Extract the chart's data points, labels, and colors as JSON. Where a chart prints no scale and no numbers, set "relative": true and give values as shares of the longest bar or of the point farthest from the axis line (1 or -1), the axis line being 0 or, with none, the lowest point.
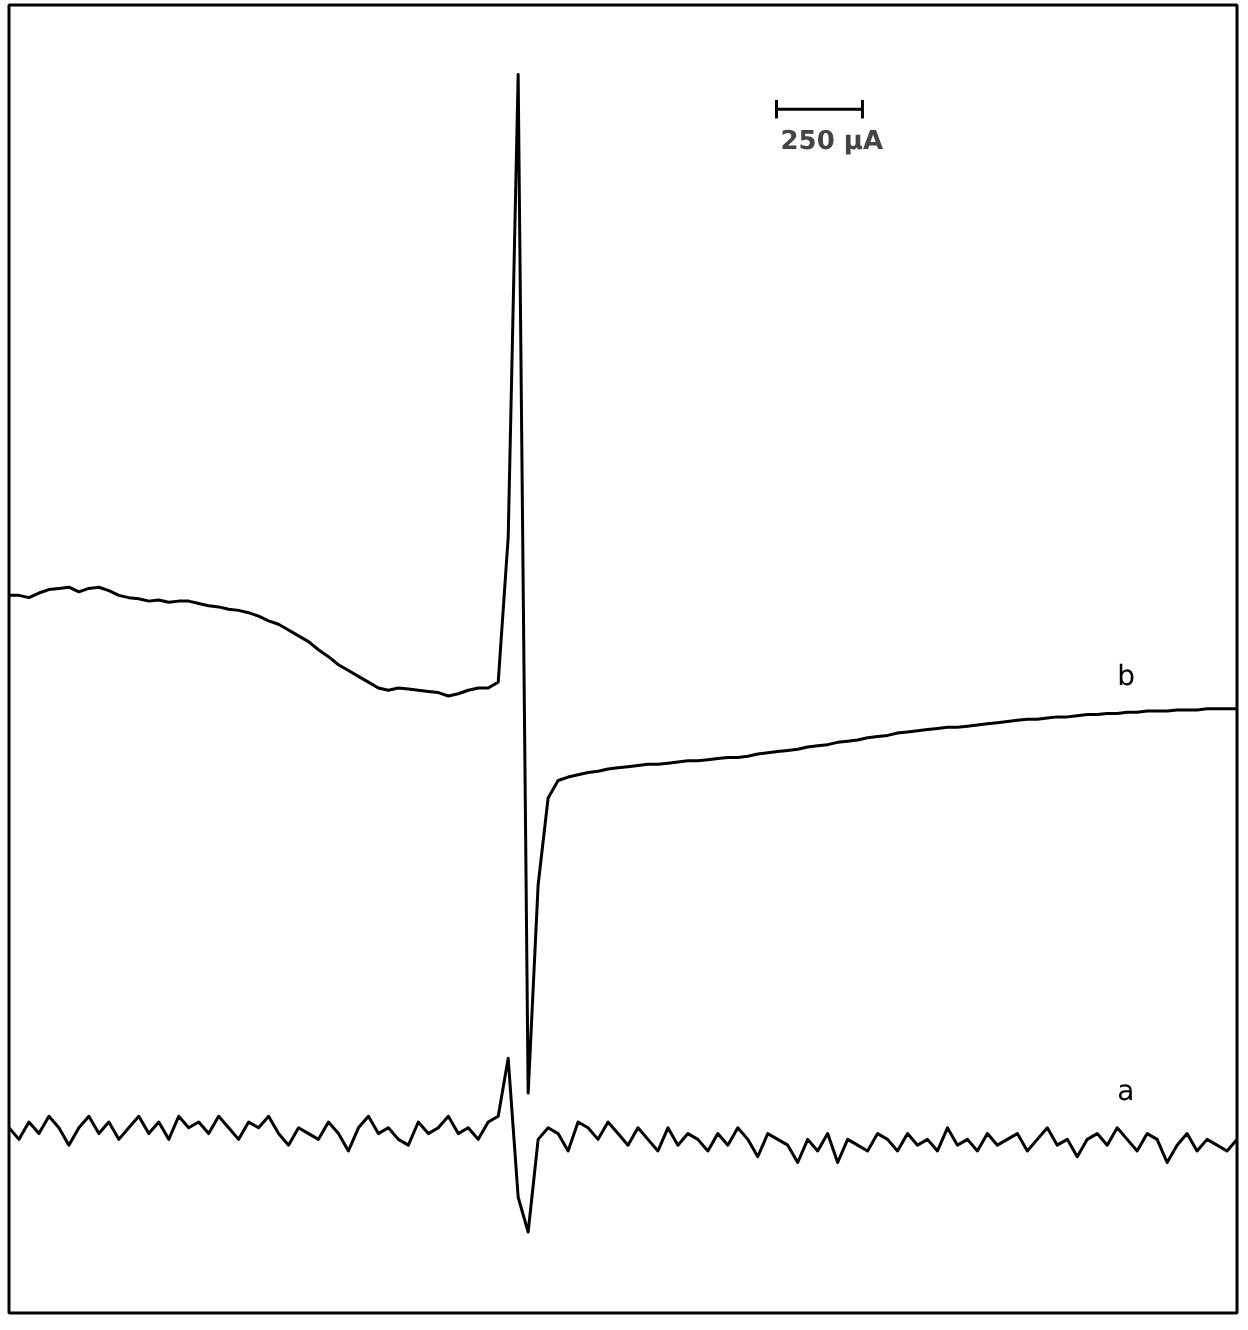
{
  "chart_data": {
    "type": "line",
    "relative": true,
    "categories": [
      null,
      null,
      null,
      null,
      null,
      null,
      null,
      null,
      null,
      null,
      null,
      null,
      null,
      null,
      null,
      null,
      null,
      null,
      null,
      null,
      null,
      null,
      null,
      null,
      null,
      null,
      null,
      null,
      null,
      null,
      null,
      null,
      null,
      null,
      null,
      null,
      null,
      null,
      null,
      null,
      null,
      null,
      null,
      null,
      null,
      null,
      null,
      null,
      null,
      null,
      null,
      null,
      null,
      null,
      null,
      null,
      null,
      null,
      null,
      null,
      null,
      null,
      null,
      null,
      null,
      null,
      null,
      null,
      null,
      null,
      null,
      null,
      null,
      null,
      null,
      null,
      null,
      null,
      null,
      null,
      null,
      null,
      null,
      null,
      null,
      null,
      null,
      null,
      null,
      null,
      null,
      null,
      null,
      null,
      null,
      null,
      null,
      null,
      null,
      null,
      null,
      null,
      null,
      null,
      null,
      null,
      null,
      null,
      null,
      null,
      null,
      null,
      null,
      null,
      null,
      null,
      null,
      null,
      null,
      null,
      null,
      null,
      null,
      null
    ],
    "series": [
      {
        "name": "b",
        "color": "#000000",
        "values": [
          0.55,
          0.55,
          0.548,
          0.552,
          0.555,
          0.556,
          0.557,
          0.553,
          0.556,
          0.557,
          0.554,
          0.55,
          0.548,
          0.547,
          0.545,
          0.546,
          0.544,
          0.545,
          0.545,
          0.543,
          0.541,
          0.54,
          0.538,
          0.537,
          0.535,
          0.532,
          0.528,
          0.525,
          0.52,
          0.515,
          0.51,
          0.503,
          0.497,
          0.49,
          0.485,
          0.48,
          0.475,
          0.47,
          0.468,
          0.47,
          0.469,
          0.468,
          0.467,
          0.466,
          0.463,
          0.465,
          0.468,
          0.47,
          0.47,
          0.475,
          0.6,
          1.0,
          0.12,
          0.3,
          0.375,
          0.39,
          0.393,
          0.395,
          0.397,
          0.398,
          0.4,
          0.401,
          0.402,
          0.403,
          0.404,
          0.404,
          0.405,
          0.406,
          0.407,
          0.407,
          0.408,
          0.409,
          0.41,
          0.41,
          0.411,
          0.413,
          0.414,
          0.415,
          0.416,
          0.417,
          0.419,
          0.42,
          0.421,
          0.423,
          0.424,
          0.425,
          0.427,
          0.428,
          0.429,
          0.431,
          0.432,
          0.433,
          0.434,
          0.435,
          0.436,
          0.436,
          0.437,
          0.438,
          0.439,
          0.44,
          0.441,
          0.442,
          0.443,
          0.443,
          0.444,
          0.445,
          0.445,
          0.446,
          0.447,
          0.447,
          0.448,
          0.448,
          0.449,
          0.449,
          0.45,
          0.45,
          0.45,
          0.451,
          0.451,
          0.451,
          0.452,
          0.452,
          0.452,
          0.452
        ]
      },
      {
        "name": "a",
        "color": "#000000",
        "values": [
          0.09,
          0.08,
          0.095,
          0.085,
          0.1,
          0.09,
          0.075,
          0.09,
          0.1,
          0.085,
          0.095,
          0.08,
          0.09,
          0.1,
          0.085,
          0.095,
          0.08,
          0.1,
          0.09,
          0.095,
          0.085,
          0.1,
          0.09,
          0.08,
          0.095,
          0.09,
          0.1,
          0.085,
          0.075,
          0.09,
          0.085,
          0.08,
          0.095,
          0.085,
          0.07,
          0.09,
          0.1,
          0.085,
          0.09,
          0.08,
          0.075,
          0.095,
          0.085,
          0.09,
          0.1,
          0.085,
          0.09,
          0.08,
          0.095,
          0.1,
          0.15,
          0.03,
          0.0,
          0.08,
          0.09,
          0.085,
          0.07,
          0.095,
          0.09,
          0.08,
          0.095,
          0.085,
          0.075,
          0.09,
          0.08,
          0.07,
          0.09,
          0.075,
          0.085,
          0.08,
          0.07,
          0.085,
          0.075,
          0.09,
          0.08,
          0.065,
          0.085,
          0.08,
          0.075,
          0.06,
          0.08,
          0.07,
          0.085,
          0.06,
          0.08,
          0.075,
          0.07,
          0.085,
          0.08,
          0.07,
          0.085,
          0.075,
          0.08,
          0.07,
          0.09,
          0.075,
          0.08,
          0.07,
          0.085,
          0.075,
          0.08,
          0.085,
          0.07,
          0.08,
          0.09,
          0.075,
          0.08,
          0.065,
          0.08,
          0.085,
          0.075,
          0.09,
          0.08,
          0.07,
          0.085,
          0.08,
          0.06,
          0.075,
          0.085,
          0.07,
          0.08,
          0.075,
          0.07,
          0.08
        ]
      }
    ],
    "annotations": [
      "250 μA"
    ]
  }
}
